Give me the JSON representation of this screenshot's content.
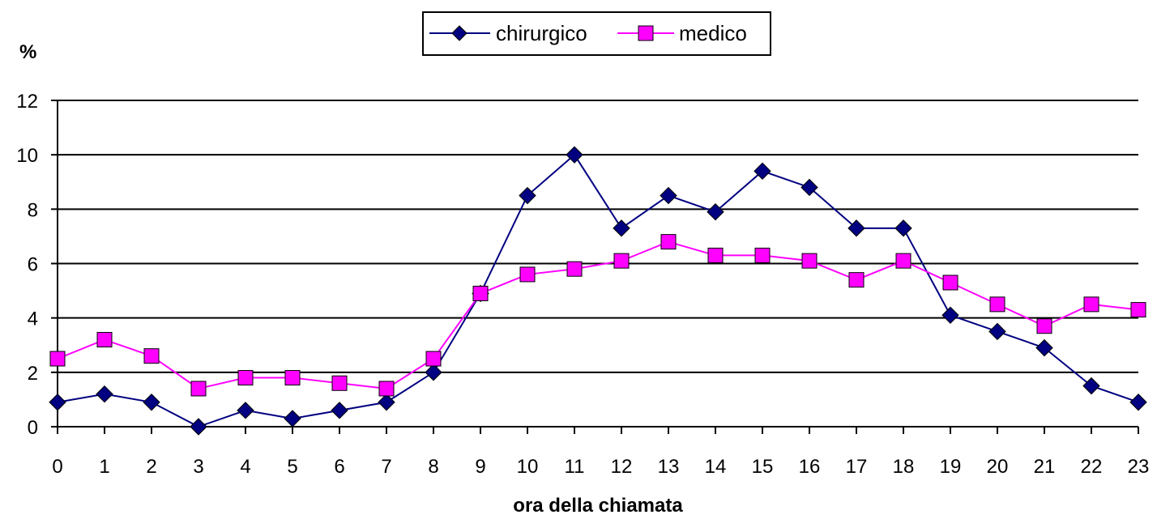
{
  "chart_data": {
    "type": "line",
    "xlabel": "ora della chiamata",
    "ylabel": "%",
    "ylim": [
      0,
      12
    ],
    "yticks": [
      0,
      2,
      4,
      6,
      8,
      10,
      12
    ],
    "grid": true,
    "legend_position": "top-center",
    "x": [
      0,
      1,
      2,
      3,
      4,
      5,
      6,
      7,
      8,
      9,
      10,
      11,
      12,
      13,
      14,
      15,
      16,
      17,
      18,
      19,
      20,
      21,
      22,
      23
    ],
    "series": [
      {
        "name": "chirurgico",
        "color": "#000080",
        "marker": "diamond",
        "marker_color": "#000080",
        "values": [
          0.9,
          1.2,
          0.9,
          0.0,
          0.6,
          0.3,
          0.6,
          0.9,
          2.0,
          4.9,
          8.5,
          10.0,
          7.3,
          8.5,
          7.9,
          9.4,
          8.8,
          7.3,
          7.3,
          4.1,
          3.5,
          2.9,
          1.5,
          0.9
        ]
      },
      {
        "name": "medico",
        "color": "#FF00FF",
        "marker": "square",
        "marker_color": "#FF00FF",
        "values": [
          2.5,
          3.2,
          2.6,
          1.4,
          1.8,
          1.8,
          1.6,
          1.4,
          2.5,
          4.9,
          5.6,
          5.8,
          6.1,
          6.8,
          6.3,
          6.3,
          6.1,
          5.4,
          6.1,
          5.3,
          4.5,
          3.7,
          4.5,
          4.3
        ]
      }
    ]
  }
}
